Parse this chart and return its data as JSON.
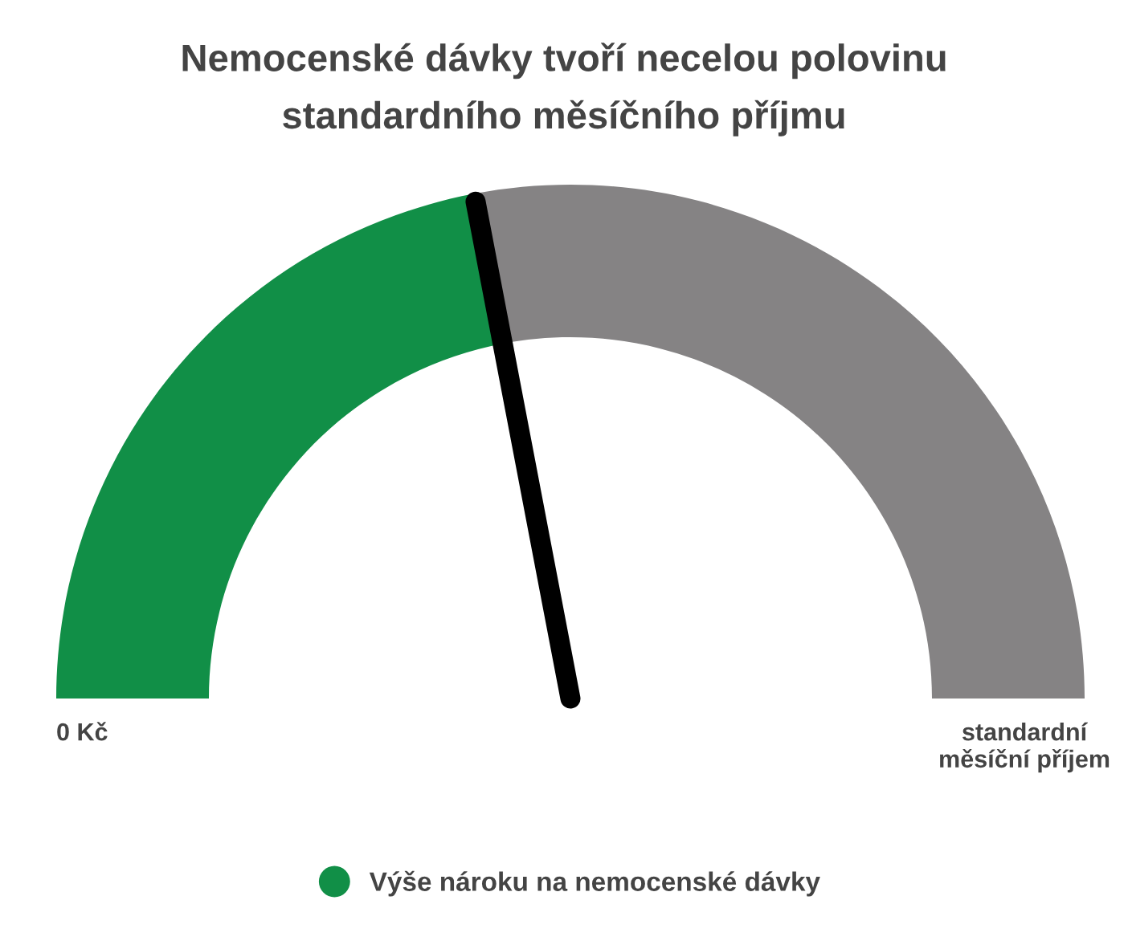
{
  "chart_data": {
    "type": "donut",
    "title": "Nemocenské dávky tvoří necelou polovinu\nstandardního měsíčního příjmu",
    "categories": [
      "Výše nároku na nemocenské dávky",
      null
    ],
    "values": [
      44,
      56
    ],
    "colors": [
      "#118f47",
      "#858384"
    ],
    "needle": "Výše nároku na nemocenské dávky",
    "legend": "bottom",
    "annotations": [
      "0 Kč",
      "standardní\nměsíční příjem"
    ]
  }
}
